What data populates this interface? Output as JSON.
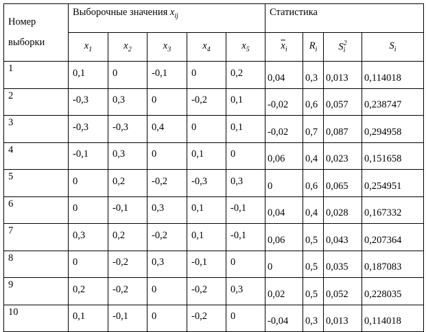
{
  "table": {
    "header": {
      "sample": "Номер выборки",
      "values": {
        "text": "Выборочные значения",
        "var": "x",
        "sub": "ij"
      },
      "stats": "Статистика",
      "columns": [
        {
          "var": "x",
          "sub": "1"
        },
        {
          "var": "x",
          "sub": "2"
        },
        {
          "var": "x",
          "sub": "3"
        },
        {
          "var": "x",
          "sub": "4"
        },
        {
          "var": "x",
          "sub": "5"
        },
        {
          "var": "x",
          "sub": "i",
          "bar": true
        },
        {
          "var": "R",
          "sub": "i"
        },
        {
          "var": "S",
          "sub": "i",
          "sup": "2"
        },
        {
          "var": "S",
          "sub": "i"
        }
      ]
    },
    "rows": [
      [
        "1",
        "0,1",
        "0",
        "-0,1",
        "0",
        "0,2",
        "0,04",
        "0,3",
        "0,013",
        "0,114018"
      ],
      [
        "2",
        "-0,3",
        "0,3",
        "0",
        "-0,2",
        "0,1",
        "-0,02",
        "0,6",
        "0,057",
        "0,238747"
      ],
      [
        "3",
        "-0,3",
        "-0,3",
        "0,4",
        "0",
        "0,1",
        "-0,02",
        "0,7",
        "0,087",
        "0,294958"
      ],
      [
        "4",
        "-0,1",
        "0,3",
        "0",
        "0,1",
        "0",
        "0,06",
        "0,4",
        "0,023",
        "0,151658"
      ],
      [
        "5",
        "0",
        "0,2",
        "-0,2",
        "-0,3",
        "0,3",
        "0",
        "0,6",
        "0,065",
        "0,254951"
      ],
      [
        "6",
        "0",
        "-0,1",
        "0,3",
        "0,1",
        "-0,1",
        "0,04",
        "0,4",
        "0,028",
        "0,167332"
      ],
      [
        "7",
        "0,3",
        "0,2",
        "-0,2",
        "0,1",
        "-0,1",
        "0,06",
        "0,5",
        "0,043",
        "0,207364"
      ],
      [
        "8",
        "0",
        "-0,2",
        "0,3",
        "-0,1",
        "0",
        "0",
        "0,5",
        "0,035",
        "0,187083"
      ],
      [
        "9",
        "0,2",
        "-0,2",
        "0",
        "-0,2",
        "0,3",
        "0,02",
        "0,5",
        "0,052",
        "0,228035"
      ],
      [
        "10",
        "0,1",
        "-0,1",
        "0",
        "-0,2",
        "0",
        "-0,04",
        "0,3",
        "0,013",
        "0,114018"
      ]
    ]
  }
}
